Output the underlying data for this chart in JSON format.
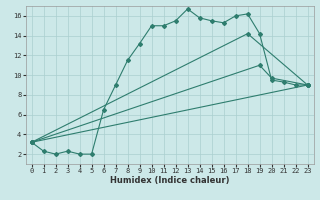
{
  "xlabel": "Humidex (Indice chaleur)",
  "bg_color": "#cce8e8",
  "line_color": "#2e7d6e",
  "grid_color": "#aacfcf",
  "xlim": [
    -0.5,
    23.5
  ],
  "ylim": [
    1,
    17
  ],
  "yticks": [
    2,
    4,
    6,
    8,
    10,
    12,
    14,
    16
  ],
  "xticks": [
    0,
    1,
    2,
    3,
    4,
    5,
    6,
    7,
    8,
    9,
    10,
    11,
    12,
    13,
    14,
    15,
    16,
    17,
    18,
    19,
    20,
    21,
    22,
    23
  ],
  "curve_x": [
    0,
    1,
    2,
    3,
    4,
    5,
    6,
    7,
    8,
    9,
    10,
    11,
    12,
    13,
    14,
    15,
    16,
    17,
    18,
    19,
    20,
    21,
    22,
    23
  ],
  "curve_y": [
    3.2,
    2.3,
    2.0,
    2.3,
    2.0,
    2.0,
    6.5,
    9.0,
    11.5,
    13.2,
    15.0,
    15.0,
    15.5,
    16.7,
    15.8,
    15.5,
    15.3,
    16.0,
    16.2,
    14.2,
    9.5,
    9.3,
    9.0,
    9.0
  ],
  "line1_x": [
    0,
    23
  ],
  "line1_y": [
    3.2,
    9.0
  ],
  "line2_x": [
    0,
    19,
    20,
    23
  ],
  "line2_y": [
    3.2,
    11.0,
    9.7,
    9.0
  ],
  "line3_x": [
    0,
    18,
    23
  ],
  "line3_y": [
    3.2,
    14.2,
    9.0
  ]
}
